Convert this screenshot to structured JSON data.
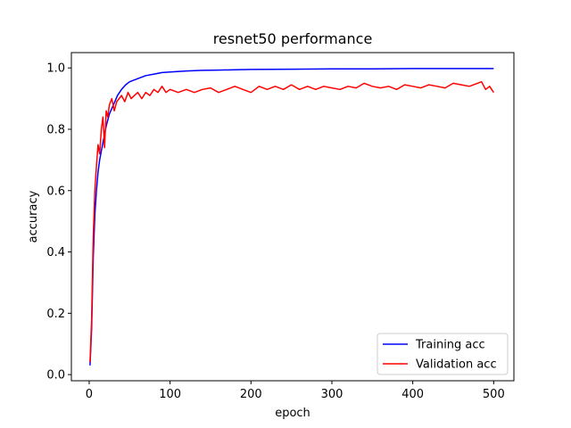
{
  "chart_data": {
    "type": "line",
    "title": "resnet50 performance",
    "xlabel": "epoch",
    "ylabel": "accuracy",
    "xlim": [
      -22,
      525
    ],
    "ylim": [
      -0.02,
      1.05
    ],
    "xticks": [
      0,
      100,
      200,
      300,
      400,
      500
    ],
    "yticks": [
      0.0,
      0.2,
      0.4,
      0.6,
      0.8,
      1.0
    ],
    "ytick_labels": [
      "0.0",
      "0.2",
      "0.4",
      "0.6",
      "0.8",
      "1.0"
    ],
    "grid": false,
    "legend_position": "lower-right",
    "series": [
      {
        "name": "Training acc",
        "color": "#0000ff",
        "x": [
          1,
          3,
          5,
          7,
          9,
          11,
          13,
          15,
          18,
          21,
          25,
          30,
          35,
          40,
          45,
          50,
          60,
          70,
          80,
          90,
          100,
          120,
          140,
          160,
          180,
          200,
          250,
          300,
          350,
          400,
          450,
          500
        ],
        "y": [
          0.03,
          0.15,
          0.38,
          0.52,
          0.6,
          0.66,
          0.7,
          0.73,
          0.77,
          0.81,
          0.85,
          0.88,
          0.91,
          0.93,
          0.945,
          0.955,
          0.965,
          0.975,
          0.98,
          0.985,
          0.987,
          0.99,
          0.992,
          0.993,
          0.994,
          0.995,
          0.996,
          0.997,
          0.997,
          0.998,
          0.998,
          0.998
        ]
      },
      {
        "name": "Validation acc",
        "color": "#ff0000",
        "x": [
          1,
          3,
          5,
          7,
          9,
          11,
          13,
          15,
          17,
          19,
          21,
          23,
          25,
          28,
          31,
          34,
          37,
          40,
          44,
          48,
          52,
          56,
          60,
          65,
          70,
          75,
          80,
          85,
          90,
          95,
          100,
          110,
          120,
          130,
          140,
          150,
          160,
          170,
          180,
          190,
          200,
          210,
          220,
          230,
          240,
          250,
          260,
          270,
          280,
          290,
          300,
          310,
          320,
          330,
          340,
          350,
          360,
          370,
          380,
          390,
          400,
          410,
          420,
          430,
          440,
          450,
          460,
          470,
          480,
          485,
          490,
          495,
          500
        ],
        "y": [
          0.04,
          0.18,
          0.45,
          0.6,
          0.68,
          0.75,
          0.72,
          0.8,
          0.84,
          0.74,
          0.86,
          0.84,
          0.88,
          0.9,
          0.86,
          0.89,
          0.9,
          0.91,
          0.89,
          0.92,
          0.9,
          0.91,
          0.92,
          0.9,
          0.92,
          0.91,
          0.93,
          0.92,
          0.94,
          0.92,
          0.93,
          0.92,
          0.93,
          0.92,
          0.93,
          0.935,
          0.92,
          0.93,
          0.94,
          0.93,
          0.92,
          0.94,
          0.93,
          0.94,
          0.93,
          0.945,
          0.93,
          0.94,
          0.93,
          0.94,
          0.935,
          0.93,
          0.94,
          0.935,
          0.95,
          0.94,
          0.935,
          0.94,
          0.93,
          0.945,
          0.94,
          0.935,
          0.945,
          0.94,
          0.935,
          0.95,
          0.945,
          0.94,
          0.95,
          0.955,
          0.93,
          0.94,
          0.92
        ]
      }
    ]
  }
}
